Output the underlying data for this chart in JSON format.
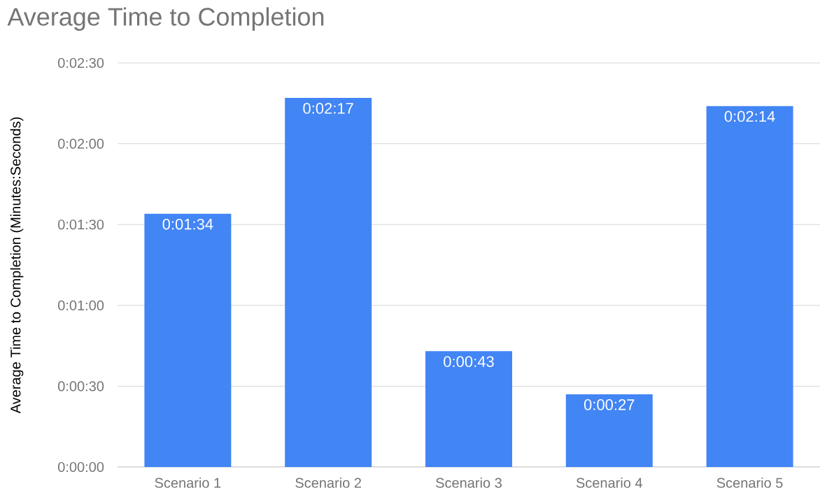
{
  "chart_data": {
    "type": "bar",
    "title": "Average Time to Completion",
    "ylabel": "Average Time to Completion (Minutes:Seconds)",
    "categories": [
      "Scenario 1",
      "Scenario 2",
      "Scenario 3",
      "Scenario 4",
      "Scenario 5"
    ],
    "values": [
      94,
      137,
      43,
      27,
      134
    ],
    "value_labels": [
      "0:01:34",
      "0:02:17",
      "0:00:43",
      "0:00:27",
      "0:02:14"
    ],
    "color": "#4285f4",
    "ylim": [
      0,
      150
    ],
    "yticks": [
      {
        "value": 0,
        "label": "0:00:00"
      },
      {
        "value": 30,
        "label": "0:00:30"
      },
      {
        "value": 60,
        "label": "0:01:00"
      },
      {
        "value": 90,
        "label": "0:01:30"
      },
      {
        "value": 120,
        "label": "0:02:00"
      },
      {
        "value": 150,
        "label": "0:02:30"
      }
    ],
    "grid": "y"
  }
}
